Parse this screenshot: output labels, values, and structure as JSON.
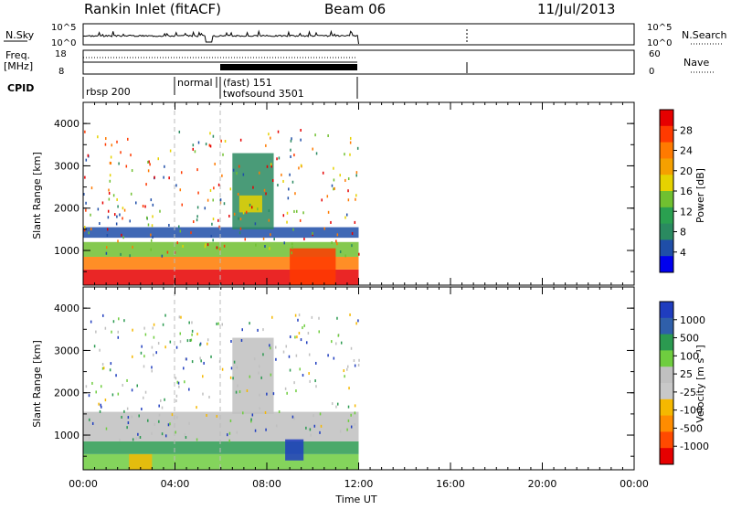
{
  "header": {
    "station": "Rankin Inlet (fitACF)",
    "beam": "Beam 06",
    "date": "11/Jul/2013"
  },
  "panels": {
    "nsky": {
      "label": "N.Sky",
      "left_ticks": [
        "10^5",
        "10^0"
      ],
      "right_ticks": [
        "10^5",
        "10^0"
      ],
      "right_label": "N.Search"
    },
    "freq": {
      "label_line1": "Freq.",
      "label_line2": "[MHz]",
      "left_ticks": [
        "18",
        "8"
      ],
      "right_ticks": [
        "60",
        "0"
      ],
      "right_label": "Nave"
    },
    "cpid": {
      "label": "CPID",
      "segments": [
        "rbsp 200",
        "normal",
        "(fast) 151",
        "twofsound 3501"
      ]
    }
  },
  "axes": {
    "xlabel": "Time UT",
    "ylabel": "Slant Range [km]",
    "xticks": [
      "00:00",
      "04:00",
      "08:00",
      "12:00",
      "16:00",
      "20:00",
      "00:00"
    ],
    "yticks": [
      "1000",
      "2000",
      "3000",
      "4000"
    ]
  },
  "colorbars": {
    "power": {
      "label": "Power [dB]",
      "ticks": [
        "28",
        "24",
        "20",
        "16",
        "12",
        "8",
        "4"
      ],
      "colors": [
        "#e60000",
        "#ff3a00",
        "#ff7a00",
        "#f5a000",
        "#e6d200",
        "#70c030",
        "#2aa050",
        "#2a8a60",
        "#1f4ea8",
        "#0000ee"
      ]
    },
    "velocity": {
      "label": "Velocity [m s⁻¹]",
      "ticks": [
        "1000",
        "500",
        "100",
        "25",
        "-25",
        "-100",
        "-500",
        "-1000"
      ],
      "colors": [
        "#1f3dbf",
        "#2f5faa",
        "#2b9a50",
        "#6fcd3f",
        "#c0c0c0",
        "#c8c8c8",
        "#f5b800",
        "#ff8c00",
        "#ff4a00",
        "#e60000"
      ]
    }
  },
  "chart_data": {
    "type": "heatmap",
    "x_range_hours": [
      0,
      24
    ],
    "y_range_km": [
      180,
      4500
    ],
    "data_end_hours": 12,
    "power_regions": [
      {
        "t0": 0.0,
        "t1": 12.0,
        "r0": 180,
        "r1": 550,
        "color": "#e60000"
      },
      {
        "t0": 0.0,
        "t1": 12.0,
        "r0": 550,
        "r1": 850,
        "color": "#ff7a00"
      },
      {
        "t0": 0.0,
        "t1": 12.0,
        "r0": 850,
        "r1": 1200,
        "color": "#70c030"
      },
      {
        "t0": 0.0,
        "t1": 12.0,
        "r0": 1300,
        "r1": 1550,
        "color": "#1f4ea8"
      },
      {
        "t0": 9.0,
        "t1": 11.0,
        "r0": 180,
        "r1": 1050,
        "color": "#ff3a00"
      },
      {
        "t0": 6.5,
        "t1": 8.3,
        "r0": 1500,
        "r1": 3300,
        "color": "#2a8a60"
      },
      {
        "t0": 6.8,
        "t1": 7.8,
        "r0": 1900,
        "r1": 2300,
        "color": "#e6d200"
      }
    ],
    "velocity_regions": [
      {
        "t0": 0.0,
        "t1": 12.0,
        "r0": 180,
        "r1": 550,
        "color": "#6fcd3f"
      },
      {
        "t0": 0.0,
        "t1": 12.0,
        "r0": 550,
        "r1": 850,
        "color": "#2b9a50"
      },
      {
        "t0": 0.0,
        "t1": 12.0,
        "r0": 850,
        "r1": 1550,
        "color": "#c0c0c0"
      },
      {
        "t0": 8.8,
        "t1": 9.6,
        "r0": 400,
        "r1": 900,
        "color": "#1f3dbf"
      },
      {
        "t0": 6.5,
        "t1": 8.3,
        "r0": 1500,
        "r1": 3300,
        "color": "#c0c0c0"
      },
      {
        "t0": 2.0,
        "t1": 3.0,
        "r0": 180,
        "r1": 550,
        "color": "#f5b800"
      }
    ]
  }
}
